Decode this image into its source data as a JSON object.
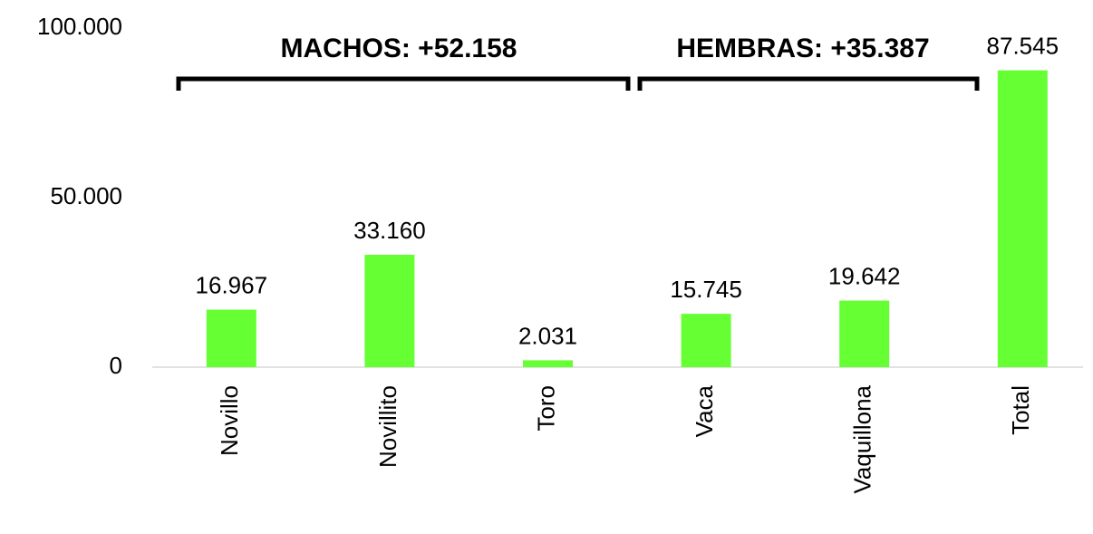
{
  "chart_data": {
    "type": "bar",
    "categories": [
      "Novillo",
      "Novillito",
      "Toro",
      "Vaca",
      "Vaquillona",
      "Total"
    ],
    "values": [
      16967,
      33160,
      2031,
      15745,
      19642,
      87545
    ],
    "value_labels": [
      "16.967",
      "33.160",
      "2.031",
      "15.745",
      "19.642",
      "87.545"
    ],
    "color": "#66ff33",
    "ylim": [
      0,
      100000
    ],
    "yticks": [
      0,
      {
        "value": 50000,
        "label": "50.000"
      },
      {
        "value": 100000,
        "label": "100.000"
      }
    ],
    "grid": false,
    "annotations": [
      "MACHOS: +52.158",
      "HEMBRAS: +35.387"
    ]
  }
}
